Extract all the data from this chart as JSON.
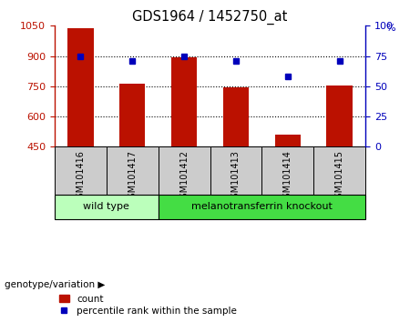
{
  "title": "GDS1964 / 1452750_at",
  "samples": [
    "GSM101416",
    "GSM101417",
    "GSM101412",
    "GSM101413",
    "GSM101414",
    "GSM101415"
  ],
  "bar_values": [
    1040,
    760,
    893,
    745,
    508,
    752
  ],
  "bar_bottom": 450,
  "dot_percent": [
    75,
    71,
    75,
    71,
    58,
    71
  ],
  "ylim_left": [
    450,
    1050
  ],
  "ylim_right": [
    0,
    100
  ],
  "yticks_left": [
    450,
    600,
    750,
    900,
    1050
  ],
  "yticks_right": [
    0,
    25,
    50,
    75,
    100
  ],
  "bar_color": "#bb1100",
  "dot_color": "#0000bb",
  "group1_label": "wild type",
  "group1_indices": [
    0,
    1
  ],
  "group2_label": "melanotransferrin knockout",
  "group2_indices": [
    2,
    3,
    4,
    5
  ],
  "group_label_prefix": "genotype/variation",
  "group1_color": "#bbffbb",
  "group2_color": "#44dd44",
  "legend_count_label": "count",
  "legend_pct_label": "percentile rank within the sample",
  "sample_cell_color": "#cccccc",
  "gridline_values": [
    600,
    750,
    900
  ],
  "bar_width": 0.5
}
